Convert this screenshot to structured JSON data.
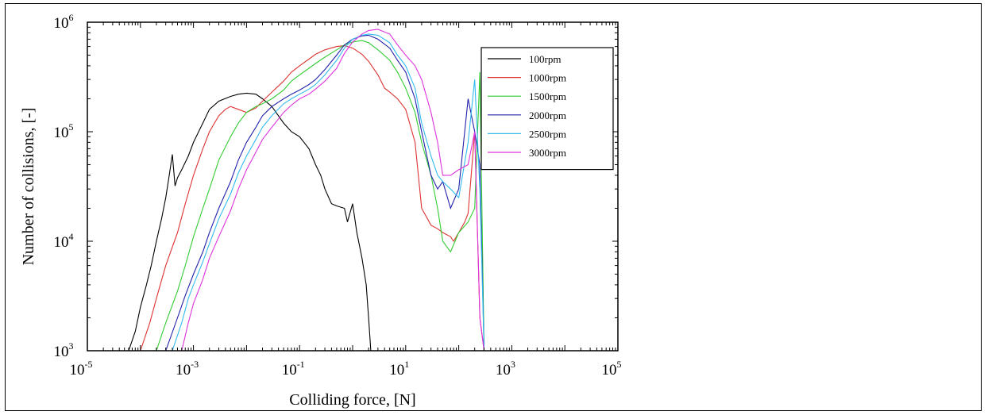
{
  "chart_data": {
    "type": "line",
    "xscale": "log",
    "yscale": "log",
    "xlim": [
      1e-05,
      100000.0
    ],
    "ylim": [
      1000,
      1000000
    ],
    "xlabel": "Colliding force, [N]",
    "ylabel": "Number of collisions, [-]",
    "xticks": [
      {
        "base": "10",
        "exp": "-5",
        "value": 1e-05
      },
      {
        "base": "10",
        "exp": "-3",
        "value": 0.001
      },
      {
        "base": "10",
        "exp": "-1",
        "value": 0.1
      },
      {
        "base": "10",
        "exp": "1",
        "value": 10
      },
      {
        "base": "10",
        "exp": "3",
        "value": 1000
      },
      {
        "base": "10",
        "exp": "5",
        "value": 100000
      }
    ],
    "yticks": [
      {
        "base": "10",
        "exp": "3",
        "value": 1000
      },
      {
        "base": "10",
        "exp": "4",
        "value": 10000
      },
      {
        "base": "10",
        "exp": "5",
        "value": 100000
      },
      {
        "base": "10",
        "exp": "6",
        "value": 1000000
      }
    ],
    "grid": false,
    "legend_position": "top-right",
    "series": [
      {
        "name": "100rpm",
        "color": "#000000",
        "x": [
          6e-05,
          8e-05,
          0.0001,
          0.00013,
          0.00016,
          0.0002,
          0.00025,
          0.0003,
          0.00035,
          0.0004,
          0.00045,
          0.0005,
          0.0006,
          0.0008,
          0.001,
          0.0015,
          0.002,
          0.003,
          0.005,
          0.007,
          0.01,
          0.015,
          0.02,
          0.03,
          0.05,
          0.07,
          0.1,
          0.15,
          0.2,
          0.25,
          0.3,
          0.4,
          0.5,
          0.7,
          0.8,
          1.0,
          1.2,
          1.5,
          1.8,
          2.0,
          2.2
        ],
        "y": [
          1000,
          1500,
          2500,
          4000,
          6000,
          10000,
          16000,
          25000,
          40000,
          62000,
          32000,
          38000,
          45000,
          60000,
          80000,
          120000,
          160000,
          190000,
          210000,
          220000,
          225000,
          220000,
          200000,
          170000,
          120000,
          100000,
          90000,
          70000,
          50000,
          40000,
          30000,
          22000,
          21000,
          20000,
          15000,
          22000,
          12000,
          7000,
          4000,
          2000,
          1000
        ]
      },
      {
        "name": "1000rpm",
        "color": "#dd3333",
        "x": [
          0.0001,
          0.00015,
          0.0002,
          0.0003,
          0.0005,
          0.0007,
          0.001,
          0.0015,
          0.002,
          0.003,
          0.004,
          0.005,
          0.007,
          0.01,
          0.015,
          0.02,
          0.03,
          0.05,
          0.07,
          0.1,
          0.15,
          0.2,
          0.3,
          0.5,
          0.7,
          1,
          1.5,
          2,
          3,
          4,
          5,
          7,
          10,
          15,
          20,
          30,
          40,
          50,
          70,
          80,
          100,
          130,
          150,
          200,
          250,
          300
        ],
        "y": [
          1000,
          1800,
          3000,
          6000,
          12000,
          22000,
          40000,
          70000,
          100000,
          140000,
          160000,
          170000,
          160000,
          150000,
          165000,
          190000,
          230000,
          290000,
          350000,
          400000,
          460000,
          510000,
          560000,
          600000,
          610000,
          580000,
          510000,
          440000,
          330000,
          250000,
          230000,
          200000,
          160000,
          80000,
          20000,
          14000,
          13000,
          12000,
          11000,
          10000,
          12000,
          15000,
          18000,
          100000,
          2000,
          1000
        ]
      },
      {
        "name": "1500rpm",
        "color": "#33cc33",
        "x": [
          0.0002,
          0.0003,
          0.0005,
          0.0007,
          0.001,
          0.0015,
          0.002,
          0.003,
          0.005,
          0.007,
          0.01,
          0.015,
          0.02,
          0.03,
          0.05,
          0.07,
          0.1,
          0.15,
          0.2,
          0.3,
          0.5,
          0.7,
          1,
          1.5,
          2,
          3,
          5,
          7,
          10,
          15,
          20,
          30,
          40,
          50,
          70,
          100,
          150,
          200,
          250,
          300
        ],
        "y": [
          1000,
          1800,
          3500,
          6000,
          11000,
          20000,
          30000,
          55000,
          90000,
          120000,
          150000,
          170000,
          180000,
          200000,
          240000,
          290000,
          330000,
          380000,
          420000,
          480000,
          560000,
          620000,
          660000,
          680000,
          650000,
          560000,
          450000,
          350000,
          250000,
          150000,
          80000,
          40000,
          20000,
          10000,
          8000,
          12000,
          15000,
          20000,
          350000,
          1000
        ]
      },
      {
        "name": "2000rpm",
        "color": "#2222aa",
        "x": [
          0.0003,
          0.0005,
          0.0007,
          0.001,
          0.0015,
          0.002,
          0.003,
          0.005,
          0.007,
          0.01,
          0.015,
          0.02,
          0.03,
          0.05,
          0.07,
          0.1,
          0.15,
          0.2,
          0.3,
          0.5,
          0.7,
          1,
          1.5,
          2,
          3,
          5,
          7,
          10,
          15,
          20,
          30,
          40,
          50,
          70,
          100,
          150,
          200,
          250,
          300
        ],
        "y": [
          1000,
          2000,
          3200,
          5000,
          8000,
          12000,
          20000,
          35000,
          55000,
          80000,
          110000,
          140000,
          170000,
          200000,
          220000,
          240000,
          270000,
          300000,
          370000,
          500000,
          620000,
          700000,
          750000,
          760000,
          700000,
          580000,
          450000,
          350000,
          200000,
          100000,
          40000,
          30000,
          35000,
          20000,
          30000,
          200000,
          100000,
          50000,
          1000
        ]
      },
      {
        "name": "2500rpm",
        "color": "#33bbee",
        "x": [
          0.0004,
          0.0006,
          0.0008,
          0.001,
          0.0015,
          0.002,
          0.003,
          0.005,
          0.007,
          0.01,
          0.015,
          0.02,
          0.03,
          0.05,
          0.07,
          0.1,
          0.15,
          0.2,
          0.3,
          0.5,
          0.7,
          1,
          1.5,
          2,
          3,
          5,
          7,
          10,
          15,
          20,
          30,
          40,
          50,
          70,
          100,
          150,
          200,
          250,
          300
        ],
        "y": [
          1000,
          1800,
          3000,
          4000,
          6500,
          9500,
          16000,
          27000,
          42000,
          60000,
          85000,
          110000,
          140000,
          180000,
          200000,
          220000,
          245000,
          270000,
          330000,
          450000,
          580000,
          700000,
          760000,
          780000,
          760000,
          650000,
          500000,
          400000,
          250000,
          120000,
          60000,
          40000,
          35000,
          30000,
          25000,
          80000,
          300000,
          30000,
          1000
        ]
      },
      {
        "name": "3000rpm",
        "color": "#dd33dd",
        "x": [
          0.0006,
          0.0008,
          0.001,
          0.0015,
          0.002,
          0.003,
          0.005,
          0.007,
          0.01,
          0.015,
          0.02,
          0.03,
          0.05,
          0.07,
          0.1,
          0.15,
          0.2,
          0.3,
          0.5,
          0.7,
          1,
          1.5,
          2,
          3,
          5,
          7,
          10,
          15,
          20,
          30,
          40,
          50,
          70,
          100,
          150,
          200,
          250,
          300
        ],
        "y": [
          1000,
          1800,
          2700,
          4500,
          7000,
          11000,
          19000,
          30000,
          45000,
          65000,
          85000,
          110000,
          150000,
          175000,
          200000,
          220000,
          245000,
          290000,
          380000,
          520000,
          660000,
          780000,
          840000,
          860000,
          780000,
          620000,
          500000,
          400000,
          300000,
          150000,
          80000,
          40000,
          40000,
          45000,
          50000,
          100000,
          2000,
          1000
        ]
      }
    ]
  }
}
